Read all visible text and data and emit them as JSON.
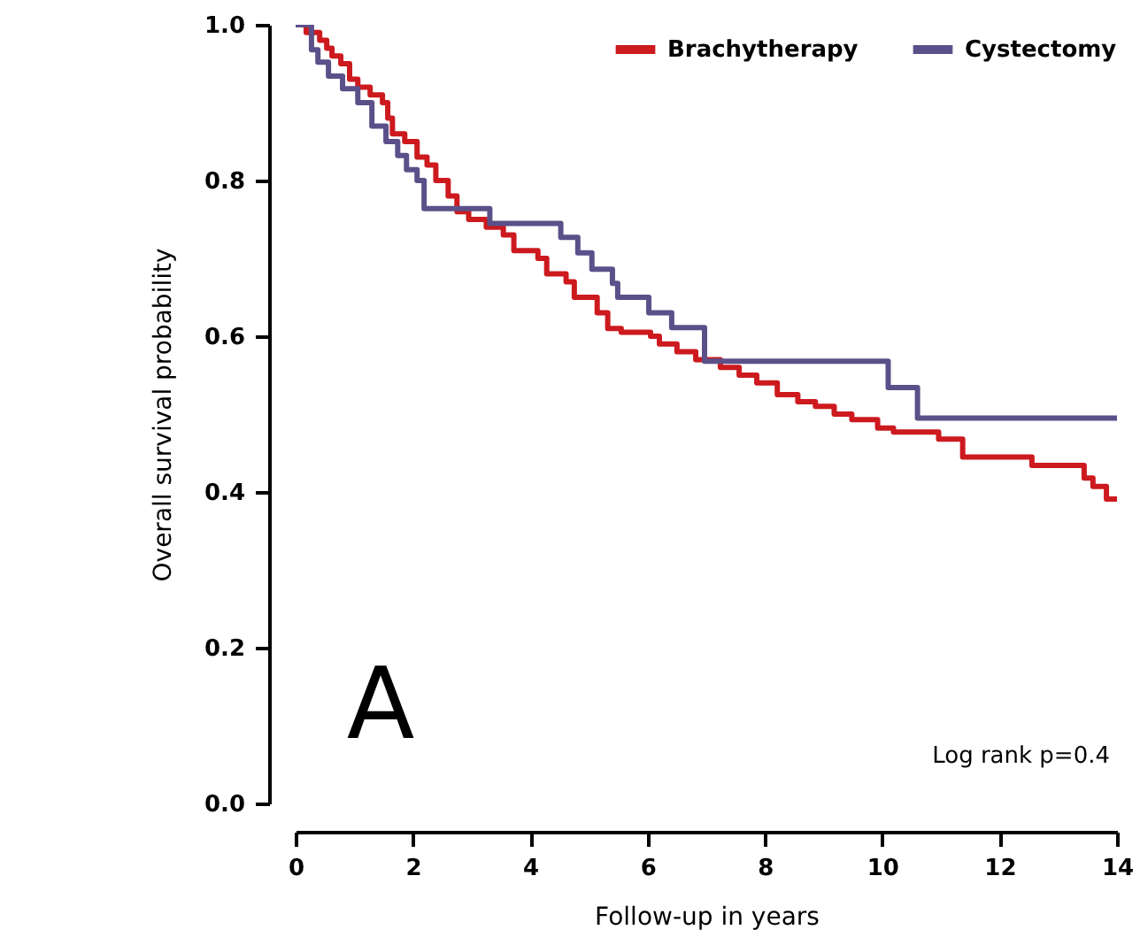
{
  "chart_data": {
    "type": "step",
    "xlabel": "Follow-up in years",
    "ylabel": "Overall survival probability",
    "xlim": [
      0,
      14
    ],
    "xticks": [
      0,
      2,
      4,
      6,
      8,
      10,
      12,
      14
    ],
    "ylim": [
      0,
      1
    ],
    "yticks": [
      {
        "value": 0,
        "label": "0.0"
      },
      0.2,
      0.4,
      0.6,
      0.8,
      {
        "value": 1,
        "label": "1.0"
      }
    ],
    "grid": false,
    "legend": "top right",
    "marker": "none",
    "line_style": "solid",
    "annotations": [
      "A",
      "Log rank p=0.4"
    ],
    "series": [
      {
        "name": "Brachytherapy",
        "color": "#cc1a1f",
        "x": [
          0,
          0.18,
          0.41,
          0.53,
          0.62,
          0.77,
          0.92,
          1.06,
          1.27,
          1.48,
          1.57,
          1.65,
          1.86,
          2.07,
          2.24,
          2.39,
          2.6,
          2.75,
          2.95,
          3.25,
          3.54,
          3.72,
          4.13,
          4.28,
          4.61,
          4.75,
          5.14,
          5.32,
          5.55,
          6.05,
          6.2,
          6.5,
          6.82,
          7.24,
          7.56,
          7.86,
          8.21,
          8.56,
          8.86,
          9.18,
          9.48,
          9.92,
          10.19,
          10.96,
          11.37,
          12.55,
          13.44,
          13.59,
          13.82,
          14
        ],
        "values": [
          1.0,
          0.99,
          0.98,
          0.97,
          0.96,
          0.95,
          0.93,
          0.92,
          0.91,
          0.9,
          0.88,
          0.86,
          0.85,
          0.83,
          0.82,
          0.8,
          0.78,
          0.76,
          0.75,
          0.74,
          0.73,
          0.71,
          0.7,
          0.68,
          0.67,
          0.65,
          0.63,
          0.61,
          0.605,
          0.6,
          0.59,
          0.58,
          0.57,
          0.56,
          0.55,
          0.54,
          0.525,
          0.516,
          0.51,
          0.5,
          0.493,
          0.482,
          0.477,
          0.468,
          0.445,
          0.434,
          0.418,
          0.407,
          0.391,
          0.391
        ]
      },
      {
        "name": "Cystectomy",
        "color": "#5b5089",
        "x": [
          0,
          0.27,
          0.38,
          0.56,
          0.8,
          1.06,
          1.3,
          1.54,
          1.74,
          1.89,
          2.07,
          2.19,
          3.31,
          4.52,
          4.81,
          5.05,
          5.4,
          5.49,
          6.02,
          6.41,
          6.97,
          10.1,
          10.6,
          14
        ],
        "values": [
          1.0,
          0.968,
          0.952,
          0.934,
          0.918,
          0.9,
          0.87,
          0.85,
          0.832,
          0.814,
          0.8,
          0.764,
          0.745,
          0.727,
          0.707,
          0.686,
          0.668,
          0.65,
          0.63,
          0.611,
          0.568,
          0.534,
          0.495,
          0.495
        ]
      }
    ]
  }
}
